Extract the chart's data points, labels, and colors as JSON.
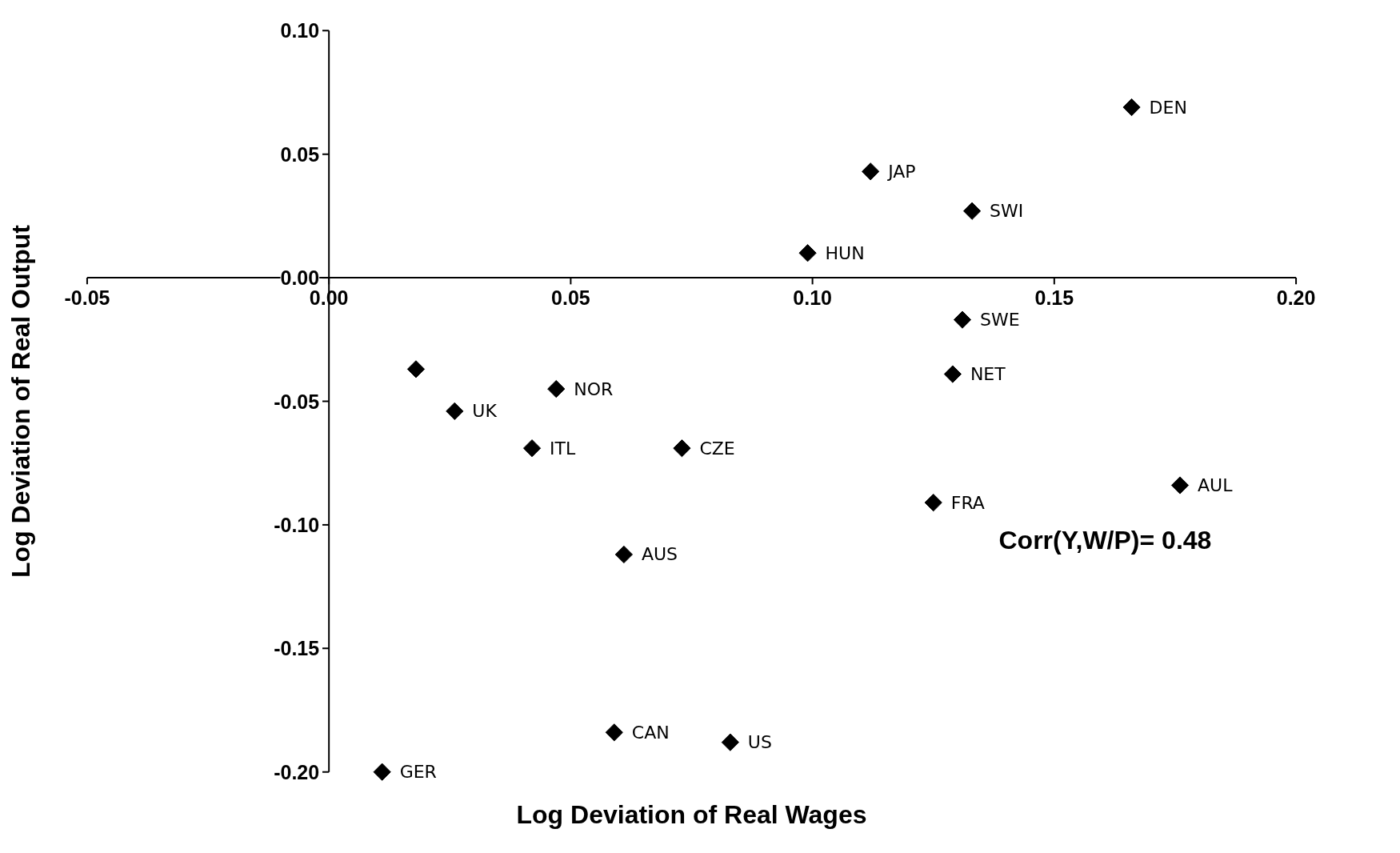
{
  "chart_data": {
    "type": "scatter",
    "xlabel": "Log Deviation of Real Wages",
    "ylabel": "Log Deviation of Real Output",
    "annotations": [
      "Corr(Y,W/P)= 0.48"
    ],
    "x": [
      0.166,
      0.112,
      0.133,
      0.099,
      0.131,
      0.129,
      0.018,
      0.047,
      0.026,
      0.042,
      0.073,
      0.125,
      0.176,
      0.061,
      0.059,
      0.083,
      0.011
    ],
    "series": [
      {
        "color": "#000000",
        "values": [
          0.069,
          0.043,
          0.027,
          0.01,
          -0.017,
          -0.039,
          -0.037,
          -0.045,
          -0.054,
          -0.069,
          -0.069,
          -0.091,
          -0.084,
          -0.112,
          -0.184,
          -0.188,
          -0.2
        ],
        "value_labels": [
          "DEN",
          "JAP",
          "SWI",
          "HUN",
          "SWE",
          "NET",
          null,
          "NOR",
          "UK",
          "ITL",
          "CZE",
          "FRA",
          "AUL",
          "AUS",
          "CAN",
          "US",
          "GER"
        ]
      }
    ],
    "xlim": [
      -0.05,
      0.2
    ],
    "ylim": [
      -0.2,
      0.1
    ],
    "xticks": [
      {
        "value": -0.05,
        "label": "-0.05"
      },
      {
        "value": 0,
        "label": "0.00"
      },
      {
        "value": 0.05,
        "label": "0.05"
      },
      {
        "value": 0.1,
        "label": "0.10"
      },
      {
        "value": 0.15,
        "label": "0.15"
      },
      {
        "value": 0.2,
        "label": "0.20"
      }
    ],
    "yticks": [
      {
        "value": -0.2,
        "label": "-0.20"
      },
      {
        "value": -0.15,
        "label": "-0.15"
      },
      {
        "value": -0.1,
        "label": "-0.10"
      },
      {
        "value": -0.05,
        "label": "-0.05"
      },
      {
        "value": 0,
        "label": "0.00"
      },
      {
        "value": 0.05,
        "label": "0.05"
      },
      {
        "value": 0.1,
        "label": "0.10"
      }
    ],
    "marker": "diamond",
    "grid": false
  }
}
